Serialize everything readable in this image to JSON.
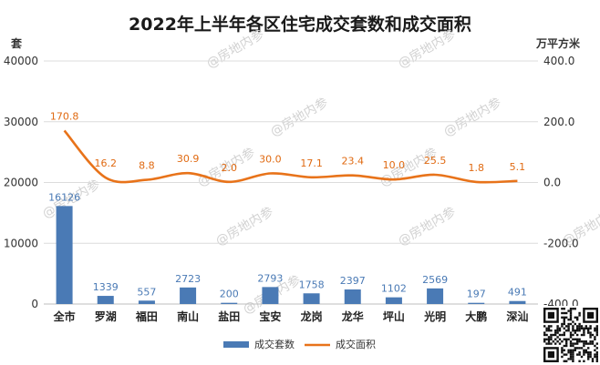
{
  "chart_data": {
    "type": "bar+line",
    "title": "2022年上半年各区住宅成交套数和成交面积",
    "categories": [
      "全市",
      "罗湖",
      "福田",
      "南山",
      "盐田",
      "宝安",
      "龙岗",
      "龙华",
      "坪山",
      "光明",
      "大鹏",
      "深汕"
    ],
    "series": [
      {
        "name": "成交套数",
        "type": "bar",
        "axis": "left",
        "color": "#4a7ab5",
        "values": [
          16126,
          1339,
          557,
          2723,
          200,
          2793,
          1758,
          2397,
          1102,
          2569,
          197,
          491
        ]
      },
      {
        "name": "成交面积",
        "type": "line",
        "axis": "right",
        "color": "#e8731a",
        "values": [
          170.8,
          16.2,
          8.8,
          30.9,
          2.0,
          30.0,
          17.1,
          23.4,
          10.0,
          25.5,
          1.8,
          5.1
        ]
      }
    ],
    "y_left": {
      "label": "套",
      "min": 0,
      "max": 40000,
      "ticks": [
        "0",
        "10000",
        "20000",
        "30000",
        "40000"
      ]
    },
    "y_right": {
      "label": "万平方米",
      "min": -400,
      "max": 400,
      "ticks": [
        "-400.0",
        "-200.0",
        "0.0",
        "200.0",
        "400.0"
      ]
    },
    "grid": true,
    "legend_position": "bottom",
    "watermark": "@房地内参"
  }
}
